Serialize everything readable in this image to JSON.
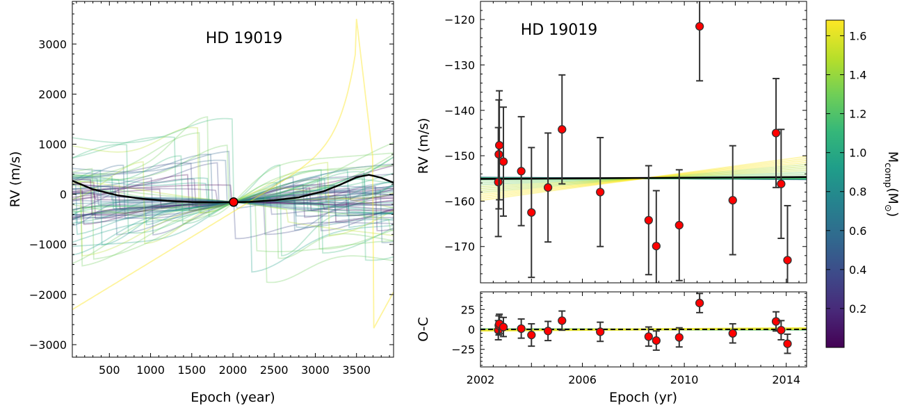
{
  "chart_data": [
    {
      "type": "line",
      "id": "left",
      "title": "HD 19019",
      "xlabel": "Epoch (year)",
      "ylabel": "RV (m/s)",
      "xlim": [
        50,
        3950
      ],
      "ylim": [
        -3250,
        3850
      ],
      "xticks": [
        500,
        1000,
        1500,
        2000,
        2500,
        3000,
        3500
      ],
      "yticks": [
        -3000,
        -2000,
        -1000,
        0,
        1000,
        2000,
        3000
      ],
      "ytick_labels": [
        "−3000",
        "−2000",
        "−1000",
        "0",
        "1000",
        "2000",
        "3000"
      ],
      "best_fit": {
        "x": [
          50,
          300,
          600,
          900,
          1200,
          1500,
          1800,
          2000,
          2200,
          2500,
          2800,
          3100,
          3300,
          3500,
          3650,
          3800,
          3950
        ],
        "y": [
          270,
          100,
          -20,
          -90,
          -130,
          -155,
          -160,
          -157,
          -150,
          -120,
          -60,
          60,
          190,
          340,
          390,
          330,
          230
        ]
      },
      "data_point": {
        "x": 2008,
        "y": -155
      }
    },
    {
      "type": "scatter",
      "id": "right-top",
      "title": "HD 19019",
      "xlabel": "",
      "ylabel": "RV (m/s)",
      "xlim": [
        2002,
        2014.8
      ],
      "ylim": [
        -178,
        -116
      ],
      "yticks": [
        -170,
        -160,
        -150,
        -140,
        -130,
        -120
      ],
      "ytick_labels": [
        "−170",
        "−160",
        "−150",
        "−140",
        "−130",
        "−120"
      ],
      "x": [
        2002.7,
        2002.72,
        2002.74,
        2002.9,
        2003.6,
        2004.0,
        2004.65,
        2005.2,
        2006.7,
        2008.6,
        2008.9,
        2009.8,
        2010.6,
        2011.9,
        2013.6,
        2013.8,
        2014.05
      ],
      "y": [
        -155.8,
        -149.7,
        -147.7,
        -151.3,
        -153.4,
        -162.5,
        -157.0,
        -144.2,
        -158.0,
        -164.2,
        -169.9,
        -165.3,
        -121.5,
        -159.8,
        -145.0,
        -156.2,
        -173.0
      ],
      "yerr": [
        12.0,
        12.0,
        12.0,
        12.0,
        12.0,
        14.3,
        12.0,
        12.0,
        12.0,
        12.0,
        12.2,
        12.2,
        12.0,
        12.0,
        12.0,
        12.0,
        12.0
      ]
    },
    {
      "type": "scatter",
      "id": "right-bottom",
      "xlabel": "Epoch (yr)",
      "ylabel": "O-C",
      "xlim": [
        2002,
        2014.8
      ],
      "ylim": [
        -47,
        47
      ],
      "xticks": [
        2002,
        2006,
        2010,
        2014
      ],
      "yticks": [
        -25,
        0,
        25
      ],
      "ytick_labels": [
        "−25",
        "0",
        "25"
      ],
      "x": [
        2002.7,
        2002.72,
        2002.74,
        2002.9,
        2003.6,
        2004.0,
        2004.65,
        2005.2,
        2006.7,
        2008.6,
        2008.9,
        2009.8,
        2010.6,
        2011.9,
        2013.6,
        2013.8,
        2014.05
      ],
      "y": [
        -1,
        5,
        7,
        3,
        1,
        -7,
        -2,
        11,
        -3,
        -9,
        -14,
        -10,
        33,
        -5,
        10,
        -1,
        -18
      ],
      "yerr": [
        12,
        12,
        12,
        12,
        12,
        14,
        12,
        12,
        12,
        12,
        12,
        12,
        12,
        12,
        12,
        12,
        12
      ]
    }
  ],
  "colorbar": {
    "label": "M",
    "label_sub": "comp",
    "label_paren": "(M",
    "label_sun": "⊙",
    "label_close": ")",
    "vmin": 0.0,
    "vmax": 1.68,
    "ticks": [
      0.2,
      0.4,
      0.6,
      0.8,
      1.0,
      1.2,
      1.4,
      1.6
    ],
    "tick_labels": [
      "0.2",
      "0.4",
      "0.6",
      "0.8",
      "1.0",
      "1.2",
      "1.4",
      "1.6"
    ],
    "colormap": [
      "#440154",
      "#482878",
      "#3e4989",
      "#31688e",
      "#26828e",
      "#1f9e89",
      "#35b779",
      "#6ece58",
      "#b5de2b",
      "#fde725"
    ]
  }
}
